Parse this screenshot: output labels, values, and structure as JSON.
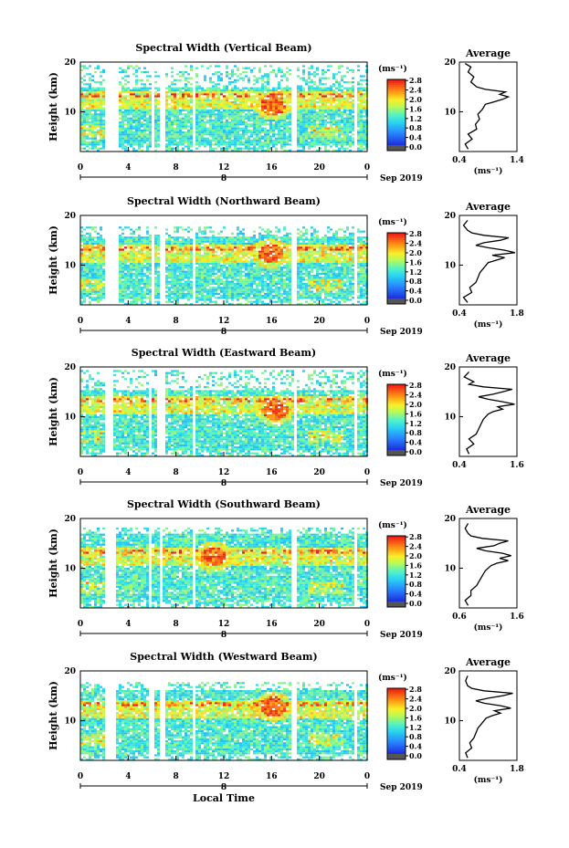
{
  "page": {
    "x_axis_label": "Local Time",
    "date_label": "Sep 2019",
    "day_label": "8",
    "unit_label": "(ms⁻¹)"
  },
  "chart_data": [
    {
      "type": "heatmap",
      "title": "Spectral Width (Vertical Beam)",
      "ylabel": "Height (km)",
      "xticks": [
        "0",
        "4",
        "8",
        "12",
        "16",
        "20",
        "0"
      ],
      "xlim": [
        0,
        24
      ],
      "yticks": [
        "20",
        "10"
      ],
      "ylim": [
        2,
        20
      ],
      "colorbar": {
        "ticks": [
          "2.8",
          "2.4",
          "2.0",
          "1.6",
          "1.2",
          "0.8",
          "0.4",
          "0.0"
        ],
        "range": [
          0,
          3.0
        ]
      },
      "gaps": [
        [
          2.0,
          3.0
        ],
        [
          5.8,
          6.0
        ],
        [
          6.6,
          7.0
        ],
        [
          9.3,
          9.6
        ],
        [
          17.6,
          17.9
        ],
        [
          22.8,
          23.1
        ]
      ],
      "ceiling_km": 19.5,
      "sparse_above_km": 15.2,
      "hotspot": {
        "x": 16,
        "y": 11.5
      },
      "average": {
        "title": "Average",
        "xticks": [
          "0.4",
          "1.4"
        ],
        "xlim": [
          0.4,
          1.4
        ],
        "yticks": [
          "20",
          "10"
        ],
        "ylim": [
          2,
          20
        ],
        "xlabel": "(ms⁻¹)",
        "h": [
          2.5,
          3.5,
          4.5,
          5.5,
          6.5,
          7.5,
          8.5,
          9.5,
          10.5,
          11.5,
          12.0,
          12.5,
          13.0,
          13.5,
          14.0,
          14.5,
          15.0,
          16.0,
          17.0,
          18.0,
          19.0,
          19.7
        ],
        "v": [
          0.55,
          0.5,
          0.62,
          0.55,
          0.7,
          0.68,
          0.75,
          0.72,
          0.8,
          0.85,
          1.0,
          1.15,
          1.25,
          1.1,
          1.2,
          0.85,
          0.7,
          0.6,
          0.65,
          0.55,
          0.6,
          0.5
        ]
      }
    },
    {
      "type": "heatmap",
      "title": "Spectral Width (Northward Beam)",
      "ylabel": "Height (km)",
      "xticks": [
        "0",
        "4",
        "8",
        "12",
        "16",
        "20",
        "0"
      ],
      "xlim": [
        0,
        24
      ],
      "yticks": [
        "20",
        "10"
      ],
      "ylim": [
        2,
        20
      ],
      "colorbar": {
        "ticks": [
          "2.8",
          "2.4",
          "2.0",
          "1.6",
          "1.2",
          "0.8",
          "0.4",
          "0.0"
        ],
        "range": [
          0,
          3.0
        ]
      },
      "gaps": [
        [
          2.0,
          3.0
        ],
        [
          5.8,
          6.0
        ],
        [
          6.6,
          7.0
        ],
        [
          9.3,
          9.6
        ],
        [
          17.6,
          17.9
        ],
        [
          22.8,
          23.1
        ]
      ],
      "ceiling_km": 18.0,
      "sparse_above_km": 16.0,
      "hotspot": {
        "x": 15.8,
        "y": 12.5
      },
      "average": {
        "title": "Average",
        "xticks": [
          "0.4",
          "1.8"
        ],
        "xlim": [
          0.4,
          1.8
        ],
        "yticks": [
          "20",
          "10"
        ],
        "ylim": [
          2,
          20
        ],
        "xlabel": "(ms⁻¹)",
        "h": [
          2.5,
          3.5,
          4.5,
          5.5,
          6.5,
          7.5,
          8.5,
          9.5,
          10.5,
          11.0,
          11.5,
          12.0,
          12.5,
          13.0,
          13.5,
          14.0,
          14.5,
          15.0,
          15.5,
          16.0,
          16.5,
          17.0,
          18.0,
          19.0
        ],
        "v": [
          0.6,
          0.5,
          0.7,
          0.65,
          0.8,
          0.85,
          0.9,
          1.0,
          1.1,
          1.3,
          1.5,
          1.2,
          1.75,
          1.5,
          1.1,
          0.8,
          1.0,
          1.4,
          1.6,
          1.0,
          0.7,
          0.6,
          0.5,
          0.6
        ]
      }
    },
    {
      "type": "heatmap",
      "title": "Spectral Width (Eastward Beam)",
      "ylabel": "Height (km)",
      "xticks": [
        "0",
        "4",
        "8",
        "12",
        "16",
        "20",
        "0"
      ],
      "xlim": [
        0,
        24
      ],
      "yticks": [
        "20",
        "10"
      ],
      "ylim": [
        2,
        20
      ],
      "colorbar": {
        "ticks": [
          "2.8",
          "2.4",
          "2.0",
          "1.6",
          "1.2",
          "0.8",
          "0.4",
          "0.0"
        ],
        "range": [
          0,
          3.0
        ]
      },
      "gaps": [
        [
          2.0,
          2.7
        ],
        [
          5.6,
          5.9
        ],
        [
          6.4,
          6.9
        ],
        [
          9.3,
          9.6
        ],
        [
          17.8,
          18.1
        ],
        [
          22.8,
          23.1
        ]
      ],
      "ceiling_km": 19.5,
      "sparse_above_km": 15.5,
      "hotspot": {
        "x": 16.2,
        "y": 11.5
      },
      "average": {
        "title": "Average",
        "xticks": [
          "0.4",
          "1.6"
        ],
        "xlim": [
          0.4,
          1.6
        ],
        "yticks": [
          "20",
          "10"
        ],
        "ylim": [
          2,
          20
        ],
        "xlabel": "",
        "h": [
          2.5,
          3.5,
          4.5,
          5.5,
          6.5,
          7.5,
          8.5,
          9.5,
          10.5,
          11.0,
          11.5,
          12.0,
          12.5,
          13.0,
          13.5,
          14.0,
          14.5,
          15.0,
          15.5,
          16.0,
          16.5,
          17.0,
          18.0,
          19.0
        ],
        "v": [
          0.6,
          0.55,
          0.7,
          0.6,
          0.75,
          0.8,
          0.85,
          0.9,
          1.0,
          1.1,
          1.3,
          1.2,
          1.55,
          1.3,
          1.0,
          0.8,
          1.1,
          1.3,
          1.5,
          0.9,
          0.6,
          0.7,
          0.5,
          0.6
        ]
      }
    },
    {
      "type": "heatmap",
      "title": "Spectral Width (Southward Beam)",
      "ylabel": "Height (km)",
      "xticks": [
        "0",
        "4",
        "8",
        "12",
        "16",
        "20",
        "0"
      ],
      "xlim": [
        0,
        24
      ],
      "yticks": [
        "20",
        "10"
      ],
      "ylim": [
        2,
        20
      ],
      "colorbar": {
        "ticks": [
          "2.8",
          "2.4",
          "2.0",
          "1.6",
          "1.2",
          "0.8",
          "0.4",
          "0.0"
        ],
        "range": [
          0,
          3.0
        ]
      },
      "gaps": [
        [
          2.0,
          2.9
        ],
        [
          5.6,
          5.9
        ],
        [
          6.6,
          6.8
        ],
        [
          9.3,
          9.6
        ],
        [
          17.6,
          17.9
        ],
        [
          22.8,
          23.1
        ]
      ],
      "ceiling_km": 18.5,
      "sparse_above_km": 17.0,
      "hotspot": {
        "x": 11,
        "y": 12.5
      },
      "average": {
        "title": "Average",
        "xticks": [
          "0.6",
          "1.6"
        ],
        "xlim": [
          0.6,
          1.6
        ],
        "yticks": [
          "20",
          "10"
        ],
        "ylim": [
          2,
          20
        ],
        "xlabel": "(ms⁻¹)",
        "h": [
          2.5,
          3.5,
          4.5,
          5.5,
          6.5,
          7.5,
          8.5,
          9.5,
          10.5,
          11.0,
          11.5,
          12.0,
          12.5,
          13.0,
          13.5,
          14.0,
          14.5,
          15.0,
          15.5,
          16.0,
          16.5,
          17.0,
          18.0,
          19.0
        ],
        "v": [
          0.75,
          0.7,
          0.8,
          0.8,
          0.9,
          0.95,
          1.0,
          1.05,
          1.15,
          1.25,
          1.45,
          1.3,
          1.5,
          1.35,
          1.05,
          0.9,
          1.2,
          1.3,
          1.45,
          1.0,
          0.8,
          0.75,
          0.7,
          0.75
        ]
      }
    },
    {
      "type": "heatmap",
      "title": "Spectral Width (Westward Beam)",
      "ylabel": "Height (km)",
      "xticks": [
        "0",
        "4",
        "8",
        "12",
        "16",
        "20",
        "0"
      ],
      "xlim": [
        0,
        24
      ],
      "yticks": [
        "20",
        "10"
      ],
      "ylim": [
        2,
        20
      ],
      "colorbar": {
        "ticks": [
          "2.8",
          "2.4",
          "2.0",
          "1.6",
          "1.2",
          "0.8",
          "0.4",
          "0.0"
        ],
        "range": [
          0,
          3.0
        ]
      },
      "gaps": [
        [
          2.0,
          2.9
        ],
        [
          5.7,
          6.0
        ],
        [
          6.6,
          7.0
        ],
        [
          9.3,
          9.6
        ],
        [
          17.6,
          17.9
        ],
        [
          22.8,
          23.1
        ]
      ],
      "ceiling_km": 18.0,
      "sparse_above_km": 16.5,
      "hotspot": {
        "x": 16,
        "y": 13
      },
      "average": {
        "title": "Average",
        "xticks": [
          "0.4",
          "1.8"
        ],
        "xlim": [
          0.4,
          1.8
        ],
        "yticks": [
          "20",
          "10"
        ],
        "ylim": [
          2,
          20
        ],
        "xlabel": "(ms⁻¹)",
        "h": [
          2.5,
          3.5,
          4.5,
          5.5,
          6.5,
          7.5,
          8.5,
          9.5,
          10.5,
          11.0,
          11.5,
          12.0,
          12.5,
          13.0,
          13.5,
          14.0,
          14.5,
          15.0,
          15.5,
          16.0,
          16.5,
          17.0,
          18.0,
          19.0
        ],
        "v": [
          0.6,
          0.55,
          0.7,
          0.65,
          0.75,
          0.8,
          0.85,
          0.95,
          1.05,
          1.2,
          1.4,
          1.25,
          1.65,
          1.4,
          1.0,
          0.8,
          1.1,
          1.45,
          1.7,
          1.0,
          0.7,
          0.6,
          0.55,
          0.6
        ]
      }
    }
  ]
}
